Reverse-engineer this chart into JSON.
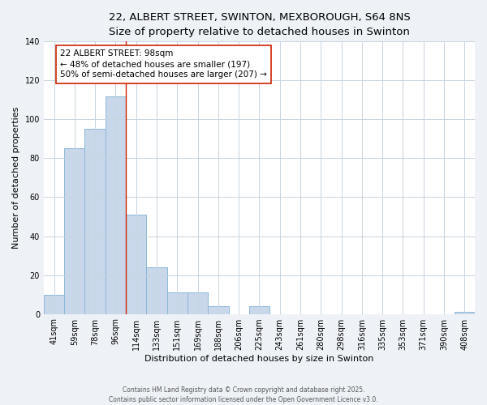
{
  "title": "22, ALBERT STREET, SWINTON, MEXBOROUGH, S64 8NS",
  "subtitle": "Size of property relative to detached houses in Swinton",
  "xlabel": "Distribution of detached houses by size in Swinton",
  "ylabel": "Number of detached properties",
  "bar_color": "#c8d8ea",
  "bar_edge_color": "#8cb8d8",
  "categories": [
    "41sqm",
    "59sqm",
    "78sqm",
    "96sqm",
    "114sqm",
    "133sqm",
    "151sqm",
    "169sqm",
    "188sqm",
    "206sqm",
    "225sqm",
    "243sqm",
    "261sqm",
    "280sqm",
    "298sqm",
    "316sqm",
    "335sqm",
    "353sqm",
    "371sqm",
    "390sqm",
    "408sqm"
  ],
  "values": [
    10,
    85,
    95,
    112,
    51,
    24,
    11,
    11,
    4,
    0,
    4,
    0,
    0,
    0,
    0,
    0,
    0,
    0,
    0,
    0,
    1
  ],
  "ylim": [
    0,
    140
  ],
  "yticks": [
    0,
    20,
    40,
    60,
    80,
    100,
    120,
    140
  ],
  "vline_x": 3.5,
  "vline_color": "#cc2200",
  "annotation_box_edge": "#cc2200",
  "property_label": "22 ALBERT STREET: 98sqm",
  "annotation_line1": "← 48% of detached houses are smaller (197)",
  "annotation_line2": "50% of semi-detached houses are larger (207) →",
  "footer_line1": "Contains HM Land Registry data © Crown copyright and database right 2025.",
  "footer_line2": "Contains public sector information licensed under the Open Government Licence v3.0.",
  "background_color": "#eef2f7",
  "plot_bg_color": "#ffffff",
  "grid_color": "#c8d4e0",
  "title_fontsize": 9.5,
  "subtitle_fontsize": 8.5,
  "axis_label_fontsize": 8,
  "tick_fontsize": 7,
  "annotation_fontsize": 7.5,
  "footer_fontsize": 5.5
}
